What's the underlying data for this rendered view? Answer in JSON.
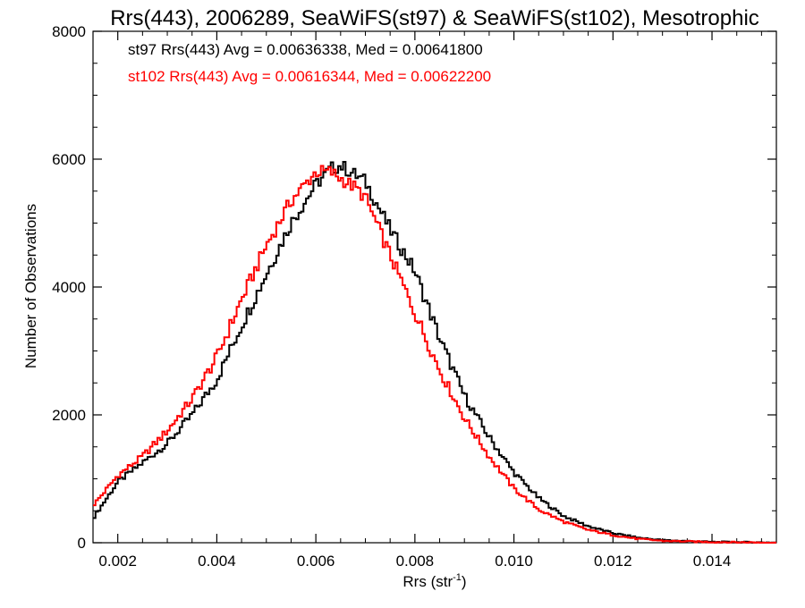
{
  "chart_data": {
    "type": "line",
    "title": "Rrs(443), 2006289, SeaWiFS(st97) & SeaWiFS(st102), Mesotrophic",
    "xlabel": "Rrs (str",
    "xlabel_sup": "-1",
    "xlabel_close": ")",
    "ylabel": "Number of Observations",
    "xlim": [
      0.0015,
      0.0153
    ],
    "ylim": [
      0,
      8000
    ],
    "xticks": [
      0.002,
      0.004,
      0.006,
      0.008,
      0.01,
      0.012,
      0.014
    ],
    "xtick_labels": [
      "0.002",
      "0.004",
      "0.006",
      "0.008",
      "0.010",
      "0.012",
      "0.014"
    ],
    "yticks": [
      0,
      2000,
      4000,
      6000,
      8000
    ],
    "ytick_labels": [
      "0",
      "2000",
      "4000",
      "6000",
      "8000"
    ],
    "grid": false,
    "annotations": [
      {
        "text": "st97 Rrs(443) Avg = 0.00636338, Med = 0.00641800",
        "color": "#000000"
      },
      {
        "text": "st102 Rrs(443) Avg = 0.00616344, Med = 0.00622200",
        "color": "#ff0000"
      }
    ],
    "series": [
      {
        "color": "#000000",
        "x": [
          0.0015,
          0.002,
          0.0025,
          0.003,
          0.0035,
          0.004,
          0.0045,
          0.005,
          0.0055,
          0.006,
          0.0063,
          0.0065,
          0.0067,
          0.007,
          0.0075,
          0.008,
          0.0085,
          0.009,
          0.0095,
          0.01,
          0.0105,
          0.011,
          0.0115,
          0.012,
          0.0125,
          0.013,
          0.014,
          0.0153
        ],
        "y": [
          380,
          950,
          1250,
          1550,
          2000,
          2550,
          3400,
          4200,
          5000,
          5600,
          5850,
          5900,
          5800,
          5650,
          4900,
          4250,
          3200,
          2300,
          1650,
          1100,
          700,
          420,
          260,
          150,
          80,
          40,
          12,
          3
        ]
      },
      {
        "color": "#ff0000",
        "x": [
          0.0015,
          0.002,
          0.0025,
          0.003,
          0.0035,
          0.004,
          0.0045,
          0.005,
          0.0055,
          0.006,
          0.0063,
          0.0065,
          0.0068,
          0.007,
          0.0075,
          0.008,
          0.0085,
          0.009,
          0.0095,
          0.01,
          0.0105,
          0.011,
          0.0115,
          0.012,
          0.0125,
          0.013,
          0.014,
          0.0153
        ],
        "y": [
          580,
          1050,
          1350,
          1750,
          2250,
          2900,
          3800,
          4650,
          5350,
          5800,
          5800,
          5700,
          5550,
          5400,
          4500,
          3600,
          2700,
          1950,
          1350,
          850,
          520,
          330,
          200,
          120,
          60,
          30,
          10,
          2
        ]
      }
    ]
  }
}
